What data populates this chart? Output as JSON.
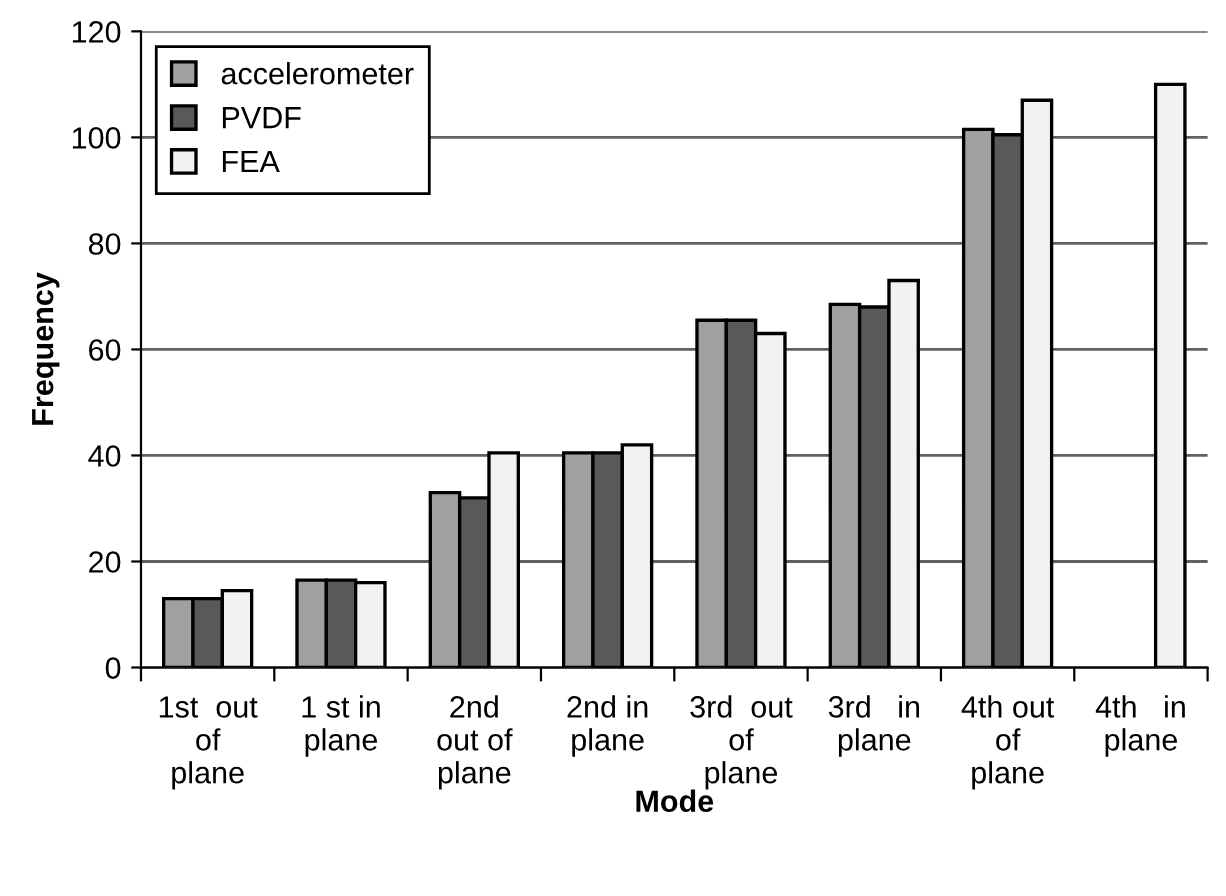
{
  "chart_data": {
    "type": "bar",
    "xlabel": "Mode",
    "ylabel": "Frequency",
    "categories": [
      "1st  out\nof\nplane",
      "1 st in\nplane",
      "2nd\nout of\nplane",
      "2nd in\nplane",
      "3rd  out\nof\nplane",
      "3rd   in\nplane",
      "4th out\nof\nplane",
      "4th   in\nplane"
    ],
    "series": [
      {
        "name": "accelerometer",
        "color": "#a0a0a0",
        "values": [
          13,
          16.5,
          33,
          40.5,
          65.5,
          68.5,
          101.5,
          null
        ]
      },
      {
        "name": "PVDF",
        "color": "#595959",
        "values": [
          13,
          16.5,
          32,
          40.5,
          65.5,
          68,
          100.5,
          null
        ]
      },
      {
        "name": "FEA",
        "color": "#f2f2f2",
        "values": [
          14.5,
          16,
          40.5,
          42,
          63,
          73,
          107,
          110
        ]
      }
    ],
    "ylim": [
      0,
      120
    ],
    "yticks": [
      0,
      20,
      40,
      60,
      80,
      100,
      120
    ],
    "grid": "y",
    "legend": "top left"
  }
}
